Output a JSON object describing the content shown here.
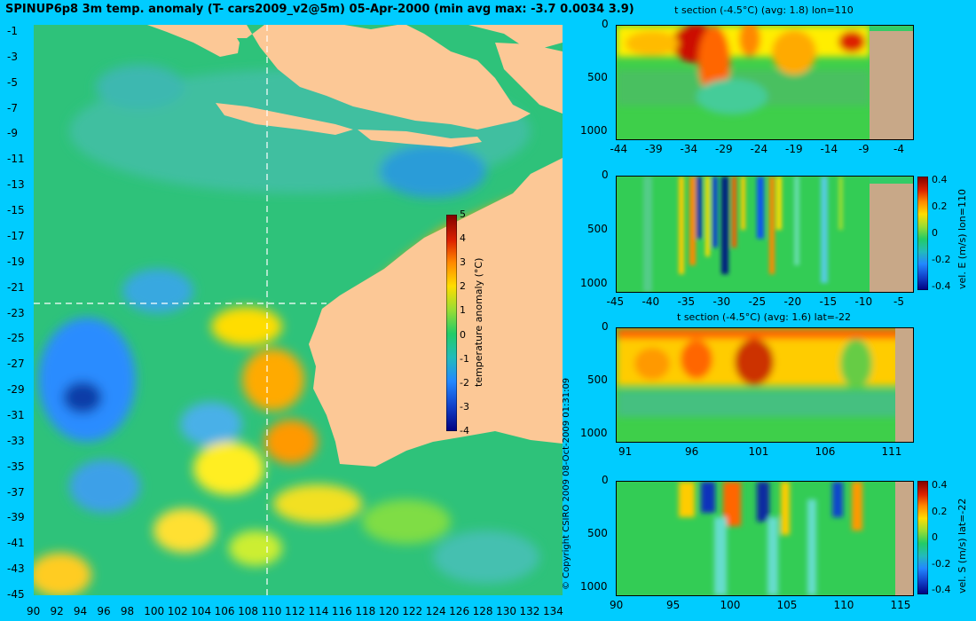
{
  "main_title": "SPINUP6p8 3m temp. anomaly (T- cars2009_v2@5m) 05-Apr-2000 (min avg max: -3.7 0.0034 3.9)",
  "copyright": "© Copyright CSIRO 2009   08-Oct-2009 01:31:09",
  "map": {
    "lon_ticks": [
      "90",
      "92",
      "94",
      "96",
      "98",
      "100",
      "102",
      "104",
      "106",
      "108",
      "110",
      "112",
      "114",
      "116",
      "118",
      "120",
      "122",
      "124",
      "126",
      "128",
      "130",
      "132",
      "134"
    ],
    "lat_ticks": [
      "-1",
      "-3",
      "-5",
      "-7",
      "-9",
      "-11",
      "-13",
      "-15",
      "-17",
      "-19",
      "-21",
      "-23",
      "-25",
      "-27",
      "-29",
      "-31",
      "-33",
      "-35",
      "-37",
      "-39",
      "-41",
      "-43",
      "-45"
    ],
    "colorbar": {
      "label": "temperature anomaly (°C)",
      "ticks": [
        "5",
        "4",
        "3",
        "2",
        "1",
        "0",
        "-1",
        "-2",
        "-3",
        "-4"
      ]
    },
    "colors": {
      "land": "#fcc896",
      "ocean_mid": "#33cc66",
      "warm": "#ffcc00",
      "cold": "#2a8cff"
    }
  },
  "panels": [
    {
      "title": "t section (-4.5°C) (avg: 1.8) lon=110",
      "y_ticks": [
        "0",
        "500",
        "1000"
      ],
      "x_ticks": [
        "-44",
        "-39",
        "-34",
        "-29",
        "-24",
        "-19",
        "-14",
        "-9",
        "-4"
      ],
      "side_label": "",
      "colorbar_ticks": []
    },
    {
      "title": "",
      "y_ticks": [
        "0",
        "500",
        "1000"
      ],
      "x_ticks": [
        "-45",
        "-40",
        "-35",
        "-30",
        "-25",
        "-20",
        "-15",
        "-10",
        "-5"
      ],
      "side_label": "vel. E (m/s) lon=110",
      "colorbar_ticks": [
        "0.4",
        "0.2",
        "0",
        "-0.2",
        "-0.4"
      ]
    },
    {
      "title": "t section (-4.5°C) (avg: 1.6) lat=-22",
      "y_ticks": [
        "0",
        "500",
        "1000"
      ],
      "x_ticks": [
        "91",
        "96",
        "101",
        "106",
        "111"
      ],
      "side_label": "",
      "colorbar_ticks": []
    },
    {
      "title": "",
      "y_ticks": [
        "0",
        "500",
        "1000"
      ],
      "x_ticks": [
        "90",
        "95",
        "100",
        "105",
        "110",
        "115"
      ],
      "side_label": "vel. S (m/s) lat=-22",
      "colorbar_ticks": [
        "0.4",
        "0.2",
        "0",
        "-0.2",
        "-0.4"
      ]
    }
  ]
}
